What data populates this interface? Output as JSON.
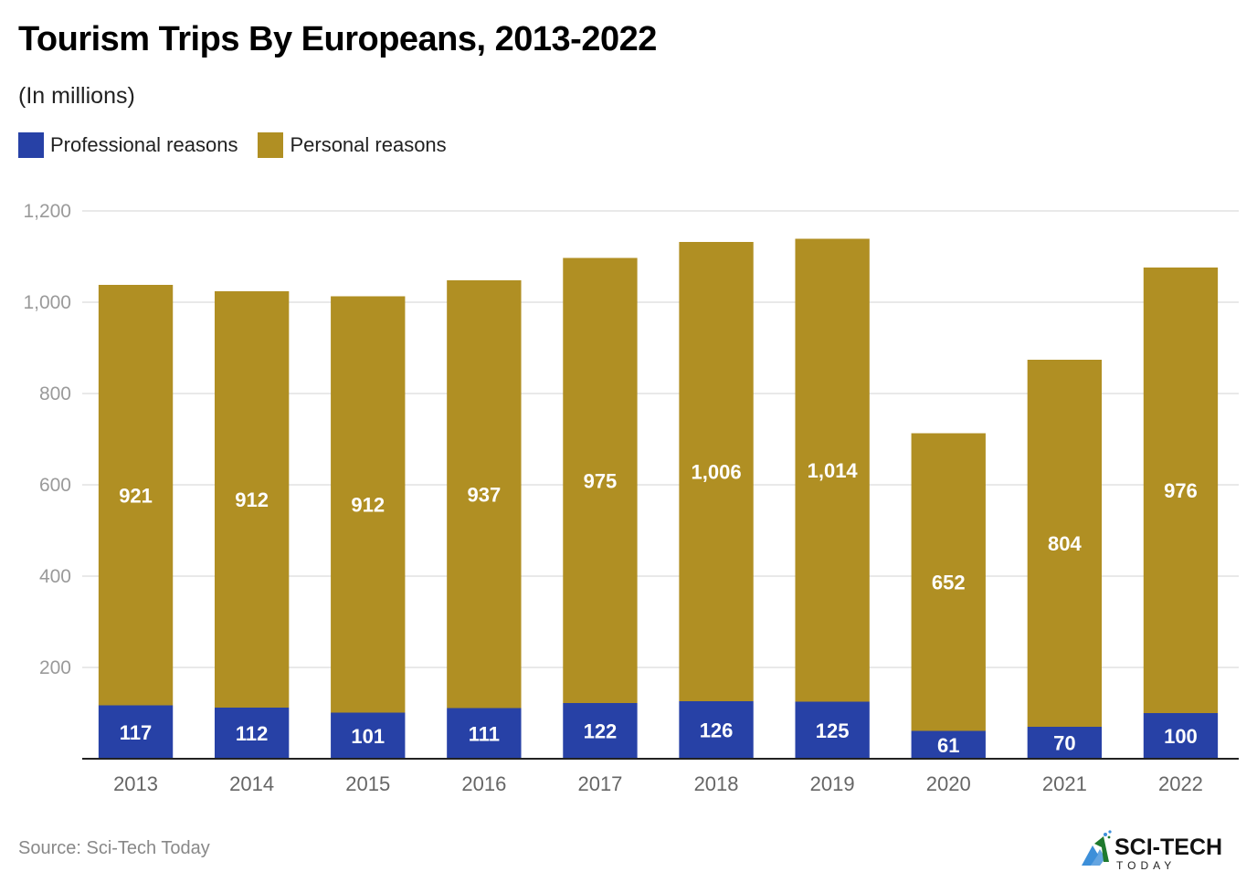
{
  "title": "Tourism Trips By Europeans, 2013-2022",
  "subtitle": "(In millions)",
  "source": "Source: Sci-Tech Today",
  "logo": {
    "main": "SCI-TECH",
    "sub": "TODAY"
  },
  "colors": {
    "professional": "#2741a6",
    "personal": "#b08f23",
    "grid": "#e2e2e2",
    "axis": "#222222"
  },
  "legend": [
    {
      "label": "Professional reasons",
      "color": "#2741a6"
    },
    {
      "label": "Personal reasons",
      "color": "#b08f23"
    }
  ],
  "chart_data": {
    "type": "bar",
    "stacked": true,
    "title": "Tourism Trips By Europeans, 2013-2022",
    "subtitle": "(In millions)",
    "xlabel": "",
    "ylabel": "",
    "ylim": [
      0,
      1200
    ],
    "yticks": [
      200,
      400,
      600,
      800,
      1000,
      1200
    ],
    "ytick_labels": [
      "200",
      "400",
      "600",
      "800",
      "1,000",
      "1,200"
    ],
    "grid": true,
    "legend_position": "top-left",
    "categories": [
      "2013",
      "2014",
      "2015",
      "2016",
      "2017",
      "2018",
      "2019",
      "2020",
      "2021",
      "2022"
    ],
    "series": [
      {
        "name": "Professional reasons",
        "values": [
          117,
          112,
          101,
          111,
          122,
          126,
          125,
          61,
          70,
          100
        ],
        "labels": [
          "117",
          "112",
          "101",
          "111",
          "122",
          "126",
          "125",
          "61",
          "70",
          "100"
        ]
      },
      {
        "name": "Personal reasons",
        "values": [
          921,
          912,
          912,
          937,
          975,
          1006,
          1014,
          652,
          804,
          976
        ],
        "labels": [
          "921",
          "912",
          "912",
          "937",
          "975",
          "1,006",
          "1,014",
          "652",
          "804",
          "976"
        ]
      }
    ]
  }
}
